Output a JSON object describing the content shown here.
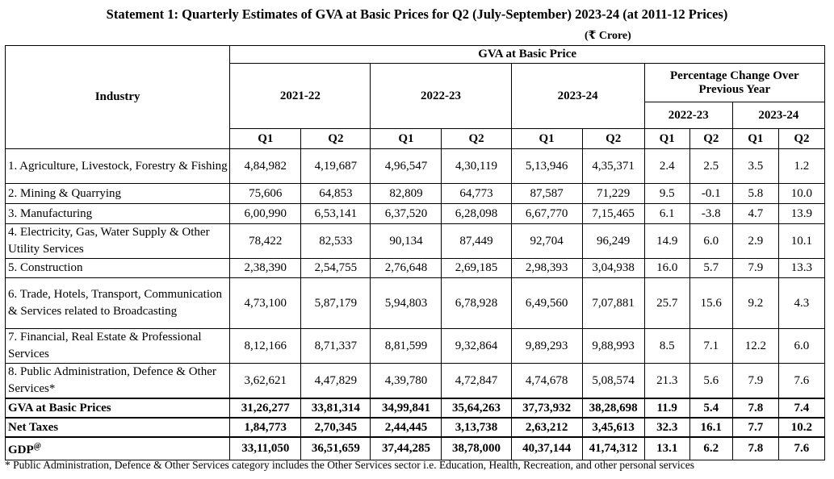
{
  "title": "Statement 1: Quarterly Estimates of GVA at Basic Prices for Q2 (July-September) 2023-24 (at 2011-12 Prices)",
  "unit": "(₹ Crore)",
  "header": {
    "industry": "Industry",
    "gva_group": "GVA at Basic Price",
    "years": [
      "2021-22",
      "2022-23",
      "2023-24"
    ],
    "pct_change": "Percentage Change Over Previous Year",
    "pct_years": [
      "2022-23",
      "2023-24"
    ],
    "q1": "Q1",
    "q2": "Q2"
  },
  "rows": [
    {
      "name": "1. Agriculture, Livestock, Forestry & Fishing",
      "values": [
        "4,84,982",
        "4,19,687",
        "4,96,547",
        "4,30,119",
        "5,13,946",
        "4,35,371",
        "2.4",
        "2.5",
        "3.5",
        "1.2"
      ]
    },
    {
      "name": "2. Mining & Quarrying",
      "values": [
        "75,606",
        "64,853",
        "82,809",
        "64,773",
        "87,587",
        "71,229",
        "9.5",
        "-0.1",
        "5.8",
        "10.0"
      ]
    },
    {
      "name": "3. Manufacturing",
      "values": [
        "6,00,990",
        "6,53,141",
        "6,37,520",
        "6,28,098",
        "6,67,770",
        "7,15,465",
        "6.1",
        "-3.8",
        "4.7",
        "13.9"
      ]
    },
    {
      "name": "4. Electricity, Gas, Water Supply & Other Utility Services",
      "values": [
        "78,422",
        "82,533",
        "90,134",
        "87,449",
        "92,704",
        "96,249",
        "14.9",
        "6.0",
        "2.9",
        "10.1"
      ]
    },
    {
      "name": "5. Construction",
      "values": [
        "2,38,390",
        "2,54,755",
        "2,76,648",
        "2,69,185",
        "2,98,393",
        "3,04,938",
        "16.0",
        "5.7",
        "7.9",
        "13.3"
      ]
    },
    {
      "name": "6. Trade, Hotels, Transport, Communication & Services related to Broadcasting",
      "values": [
        "4,73,100",
        "5,87,179",
        "5,94,803",
        "6,78,928",
        "6,49,560",
        "7,07,881",
        "25.7",
        "15.6",
        "9.2",
        "4.3"
      ]
    },
    {
      "name": "7. Financial, Real Estate & Professional Services",
      "values": [
        "8,12,166",
        "8,71,337",
        "8,81,599",
        "9,32,864",
        "9,89,293",
        "9,88,993",
        "8.5",
        "7.1",
        "12.2",
        "6.0"
      ]
    },
    {
      "name": "8. Public Administration, Defence & Other Services*",
      "values": [
        "3,62,621",
        "4,47,829",
        "4,39,780",
        "4,72,847",
        "4,74,678",
        "5,08,574",
        "21.3",
        "5.6",
        "7.9",
        "7.6"
      ]
    }
  ],
  "totals": [
    {
      "name": "GVA at Basic Prices",
      "sup": "",
      "values": [
        "31,26,277",
        "33,81,314",
        "34,99,841",
        "35,64,263",
        "37,73,932",
        "38,28,698",
        "11.9",
        "5.4",
        "7.8",
        "7.4"
      ]
    },
    {
      "name": "Net Taxes",
      "sup": "",
      "values": [
        "1,84,773",
        "2,70,345",
        "2,44,445",
        "3,13,738",
        "2,63,212",
        "3,45,613",
        "32.3",
        "16.1",
        "7.7",
        "10.2"
      ]
    },
    {
      "name": "GDP",
      "sup": "@",
      "values": [
        "33,11,050",
        "36,51,659",
        "37,44,285",
        "38,78,000",
        "40,37,144",
        "41,74,312",
        "13.1",
        "6.2",
        "7.8",
        "7.6"
      ]
    }
  ],
  "footnote": "* Public Administration, Defence & Other Services category includes the Other Services sector i.e. Education, Health, Recreation, and other personal services"
}
